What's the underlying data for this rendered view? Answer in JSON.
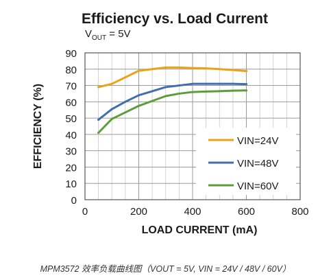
{
  "chart_data": {
    "type": "line",
    "title": "Efficiency vs. Load Current",
    "subtitle": {
      "prefix": "V",
      "subscript": "OUT",
      "suffix": " = 5V"
    },
    "xlabel": "LOAD CURRENT (mA)",
    "ylabel": "EFFICIENCY (%)",
    "xlim": [
      0,
      800
    ],
    "ylim": [
      0,
      90
    ],
    "xticks": [
      0,
      200,
      400,
      600,
      800
    ],
    "yticks": [
      0,
      10,
      20,
      30,
      40,
      50,
      60,
      70,
      80,
      90
    ],
    "grid": true,
    "legend_position": "bottom-right",
    "series": [
      {
        "name": "VIN=24V",
        "color": "#e8a317",
        "x": [
          50,
          100,
          150,
          200,
          250,
          300,
          350,
          400,
          450,
          500,
          550,
          600
        ],
        "y": [
          69,
          71,
          75,
          79,
          80,
          81,
          81,
          80.7,
          80.5,
          80,
          79.5,
          78.8
        ]
      },
      {
        "name": "VIN=48V",
        "color": "#3f6fae",
        "x": [
          50,
          100,
          150,
          200,
          250,
          300,
          350,
          400,
          450,
          500,
          550,
          600
        ],
        "y": [
          49,
          55.5,
          60,
          64,
          66.5,
          69,
          70,
          71,
          71,
          71,
          71,
          70.8
        ]
      },
      {
        "name": "VIN=60V",
        "color": "#5e9c3a",
        "x": [
          50,
          100,
          150,
          200,
          250,
          300,
          350,
          400,
          450,
          500,
          550,
          600
        ],
        "y": [
          41,
          49.5,
          53.5,
          57.5,
          60.5,
          63.5,
          65,
          66,
          66.3,
          66.5,
          66.8,
          67
        ]
      }
    ]
  },
  "caption": "MPM3572 效率负载曲线图（VOUT = 5V,  VIN = 24V / 48V / 60V）"
}
